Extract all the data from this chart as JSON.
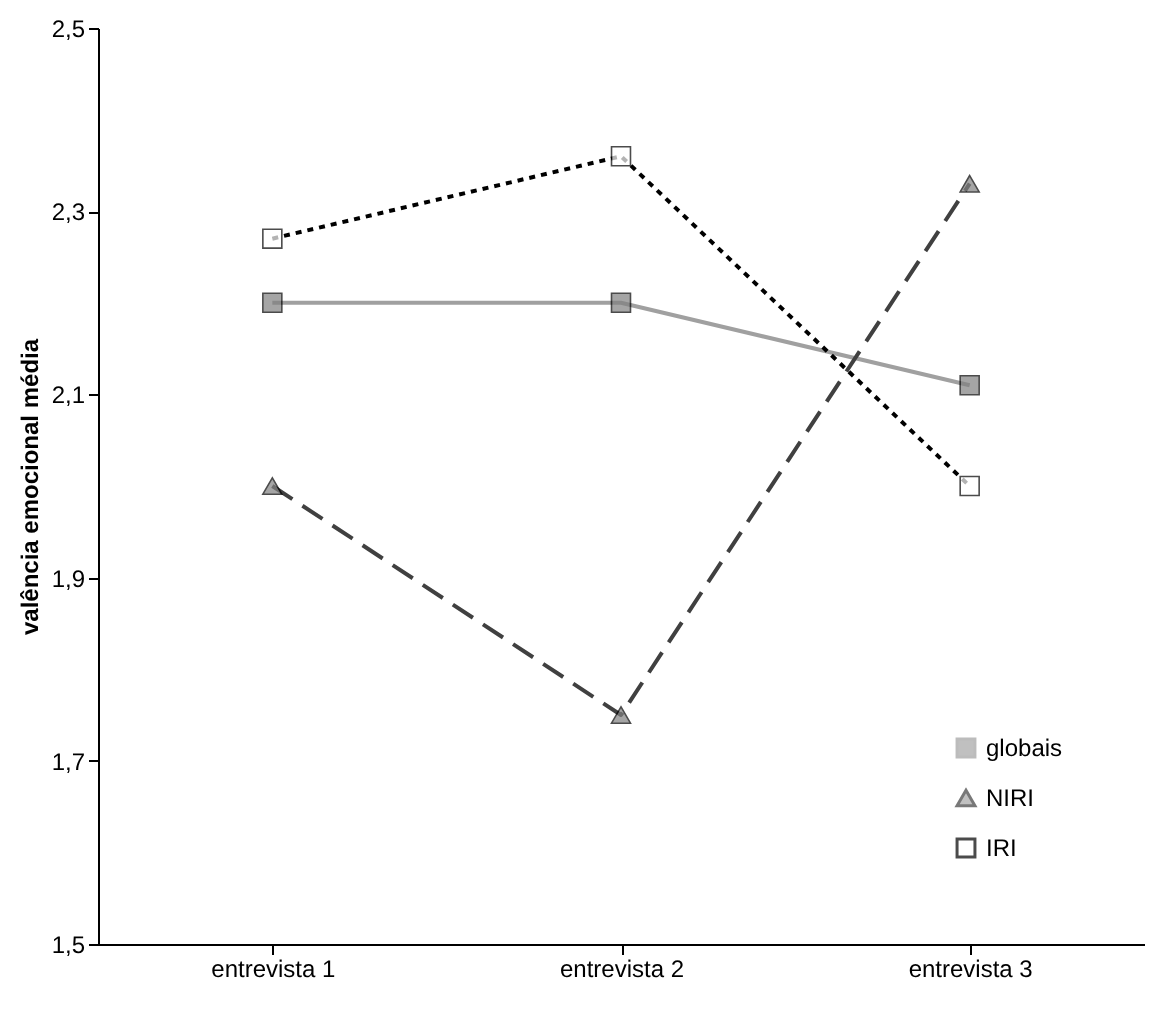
{
  "chart_data": {
    "type": "line",
    "ylabel": "valência emocional média",
    "categories": [
      "entrevista 1",
      "entrevista 2",
      "entrevista 3"
    ],
    "ylim": [
      1.5,
      2.5
    ],
    "yticks": [
      {
        "value": 1.5,
        "label": "1,5"
      },
      {
        "value": 1.7,
        "label": "1,7"
      },
      {
        "value": 1.9,
        "label": "1,9"
      },
      {
        "value": 2.1,
        "label": "2,1"
      },
      {
        "value": 2.3,
        "label": "2,3"
      },
      {
        "value": 2.5,
        "label": "2,5"
      }
    ],
    "grid": false,
    "legend": "bottom right",
    "series": [
      {
        "name": "globais",
        "color": "#a0a0a0",
        "marker": "square",
        "line_style": "solid",
        "values": [
          2.2,
          2.2,
          2.11
        ]
      },
      {
        "name": "NIRI",
        "color": "#404040",
        "marker": "triangle",
        "line_style": "dashed",
        "values": [
          2.0,
          1.75,
          2.33
        ]
      },
      {
        "name": "IRI",
        "color": "#000000",
        "marker": "square",
        "line_style": "dotted",
        "values": [
          2.27,
          2.36,
          2.0
        ]
      }
    ]
  }
}
